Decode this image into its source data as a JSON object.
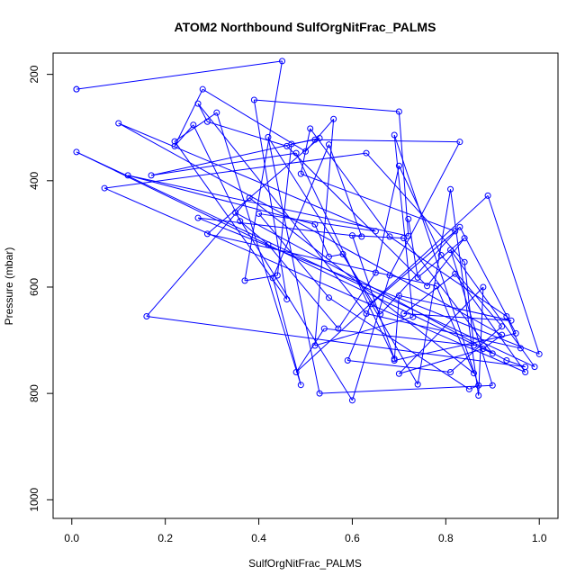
{
  "chart_data": {
    "type": "line",
    "title": "ATOM2 Northbound SulfOrgNitFrac_PALMS",
    "xlabel": "SulfOrgNitFrac_PALMS",
    "ylabel": "Pressure (mbar)",
    "xlim": [
      -0.04,
      1.04
    ],
    "ylim": [
      1035,
      160
    ],
    "y_reversed": true,
    "grid": false,
    "legend": "none",
    "x_ticks": [
      0.0,
      0.2,
      0.4,
      0.6,
      0.8,
      1.0
    ],
    "x_tick_labels": [
      "0.0",
      "0.2",
      "0.4",
      "0.6",
      "0.8",
      "1.0"
    ],
    "y_ticks": [
      200,
      400,
      600,
      800,
      1000
    ],
    "y_tick_labels": [
      "200",
      "400",
      "600",
      "800",
      "1000"
    ],
    "marker": "open-circle",
    "series": [
      {
        "color": "#0000ff",
        "points": [
          [
            0.01,
            228
          ],
          [
            0.01,
            228
          ],
          [
            0.45,
            175
          ],
          [
            0.37,
            588
          ],
          [
            0.44,
            578
          ],
          [
            0.47,
            331
          ],
          [
            0.52,
            323
          ],
          [
            0.83,
            327
          ],
          [
            0.68,
            578
          ],
          [
            0.6,
            813
          ],
          [
            0.35,
            460
          ],
          [
            0.93,
            738
          ],
          [
            0.97,
            750
          ],
          [
            0.16,
            655
          ],
          [
            0.38,
            432
          ],
          [
            0.86,
            762
          ],
          [
            0.78,
            598
          ],
          [
            0.29,
            500
          ],
          [
            0.53,
            320
          ],
          [
            0.17,
            390
          ],
          [
            0.48,
            348
          ],
          [
            0.69,
            735
          ],
          [
            0.6,
            503
          ],
          [
            0.71,
            508
          ],
          [
            0.9,
            725
          ],
          [
            0.01,
            346
          ],
          [
            0.99,
            750
          ],
          [
            0.81,
            530
          ],
          [
            0.9,
            785
          ],
          [
            0.53,
            800
          ],
          [
            0.42,
            318
          ],
          [
            0.66,
            651
          ],
          [
            0.83,
            487
          ],
          [
            0.95,
            687
          ],
          [
            0.69,
            738
          ],
          [
            0.7,
            616
          ],
          [
            0.94,
            663
          ],
          [
            0.71,
            650
          ],
          [
            0.82,
            575
          ],
          [
            0.97,
            760
          ],
          [
            0.07,
            414
          ],
          [
            0.63,
            348
          ],
          [
            0.84,
            553
          ],
          [
            0.86,
            710
          ],
          [
            0.54,
            678
          ],
          [
            0.48,
            760
          ],
          [
            0.89,
            428
          ],
          [
            1.0,
            726
          ],
          [
            0.27,
            470
          ],
          [
            0.62,
            505
          ],
          [
            0.55,
            332
          ],
          [
            0.43,
            583
          ],
          [
            0.49,
            784
          ],
          [
            0.31,
            272
          ],
          [
            0.22,
            326
          ],
          [
            0.46,
            623
          ],
          [
            0.39,
            248
          ],
          [
            0.7,
            270
          ],
          [
            0.72,
            504
          ],
          [
            0.12,
            390
          ],
          [
            0.52,
            482
          ],
          [
            0.55,
            543
          ],
          [
            0.58,
            538
          ],
          [
            0.74,
            783
          ],
          [
            0.81,
            416
          ],
          [
            0.87,
            804
          ],
          [
            0.88,
            600
          ],
          [
            0.7,
            763
          ],
          [
            0.88,
            716
          ],
          [
            0.92,
            690
          ],
          [
            0.1,
            292
          ],
          [
            0.65,
            495
          ],
          [
            0.4,
            462
          ],
          [
            0.55,
            620
          ],
          [
            0.85,
            792
          ],
          [
            0.87,
            785
          ],
          [
            0.69,
            314
          ],
          [
            0.73,
            656
          ],
          [
            0.52,
            710
          ],
          [
            0.56,
            284
          ],
          [
            0.5,
            345
          ],
          [
            0.28,
            228
          ],
          [
            0.22,
            335
          ],
          [
            0.26,
            295
          ],
          [
            0.36,
            476
          ],
          [
            0.42,
            520
          ],
          [
            0.57,
            678
          ],
          [
            0.65,
            573
          ],
          [
            0.7,
            372
          ],
          [
            0.79,
            540
          ],
          [
            0.92,
            674
          ],
          [
            0.81,
            760
          ],
          [
            0.59,
            738
          ],
          [
            0.64,
            632
          ],
          [
            0.82,
            495
          ],
          [
            0.49,
            387
          ],
          [
            0.51,
            302
          ],
          [
            0.68,
            505
          ],
          [
            0.93,
            655
          ],
          [
            0.96,
            715
          ],
          [
            0.63,
            650
          ],
          [
            0.27,
            255
          ],
          [
            0.29,
            289
          ],
          [
            0.46,
            335
          ],
          [
            0.76,
            598
          ],
          [
            0.84,
            508
          ],
          [
            0.74,
            582
          ],
          [
            0.72,
            472
          ]
        ]
      }
    ]
  }
}
